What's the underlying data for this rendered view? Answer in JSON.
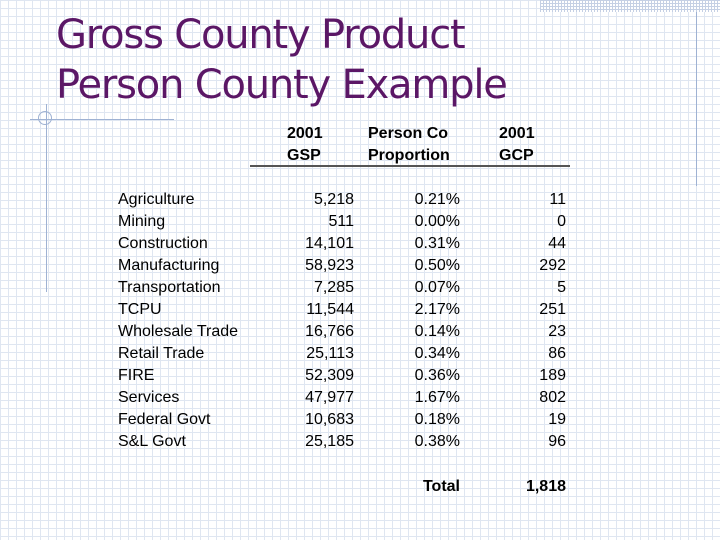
{
  "slide": {
    "title_line1": "Gross County Product",
    "title_line2": "Person County Example"
  },
  "table": {
    "headers": {
      "gsp": [
        "2001",
        "GSP"
      ],
      "proportion": [
        "Person Co",
        "Proportion"
      ],
      "gcp": [
        "2001",
        "GCP"
      ]
    },
    "rows": [
      {
        "sector": "Agriculture",
        "gsp": "5,218",
        "proportion": "0.21%",
        "gcp": "11"
      },
      {
        "sector": "Mining",
        "gsp": "511",
        "proportion": "0.00%",
        "gcp": "0"
      },
      {
        "sector": "Construction",
        "gsp": "14,101",
        "proportion": "0.31%",
        "gcp": "44"
      },
      {
        "sector": "Manufacturing",
        "gsp": "58,923",
        "proportion": "0.50%",
        "gcp": "292"
      },
      {
        "sector": "Transportation",
        "gsp": "7,285",
        "proportion": "0.07%",
        "gcp": "5"
      },
      {
        "sector": "TCPU",
        "gsp": "11,544",
        "proportion": "2.17%",
        "gcp": "251"
      },
      {
        "sector": "Wholesale Trade",
        "gsp": "16,766",
        "proportion": "0.14%",
        "gcp": "23"
      },
      {
        "sector": "Retail Trade",
        "gsp": "25,113",
        "proportion": "0.34%",
        "gcp": "86"
      },
      {
        "sector": "FIRE",
        "gsp": "52,309",
        "proportion": "0.36%",
        "gcp": "189"
      },
      {
        "sector": "Services",
        "gsp": "47,977",
        "proportion": "1.67%",
        "gcp": "802"
      },
      {
        "sector": "Federal Govt",
        "gsp": "10,683",
        "proportion": "0.18%",
        "gcp": "19"
      },
      {
        "sector": "S&L Govt",
        "gsp": "25,185",
        "proportion": "0.38%",
        "gcp": "96"
      }
    ],
    "total": {
      "label": "Total",
      "gcp": "1,818"
    }
  },
  "colors": {
    "title": "#5b1766",
    "accent_lines": "#9fb2d3",
    "grid": "#dfe6f1",
    "text": "#000000"
  }
}
